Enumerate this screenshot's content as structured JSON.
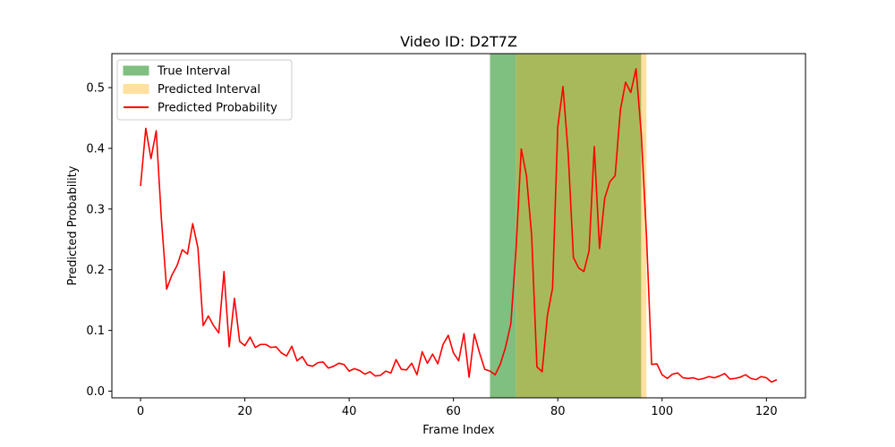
{
  "chart_data": {
    "type": "line",
    "title": "Video ID: D2T7Z",
    "xlabel": "Frame Index",
    "ylabel": "Predicted Probability",
    "xlim": [
      -5.5,
      127.5
    ],
    "ylim": [
      -0.011,
      0.556
    ],
    "xticks": [
      0,
      20,
      40,
      60,
      80,
      100,
      120
    ],
    "yticks": [
      0.0,
      0.1,
      0.2,
      0.3,
      0.4,
      0.5
    ],
    "grid": false,
    "legend_position": "top-left",
    "legend": [
      {
        "label": "True Interval",
        "kind": "patch",
        "color": "#7fbf7f"
      },
      {
        "label": "Predicted Interval",
        "kind": "patch",
        "color": "#ffe0a0"
      },
      {
        "label": "Predicted Probability",
        "kind": "line",
        "color": "#ff0000"
      }
    ],
    "intervals": {
      "true": {
        "start": 67,
        "end": 72,
        "color": "#7fbf7f"
      },
      "overlap": {
        "start": 72,
        "end": 96,
        "color": "#a8b95c"
      },
      "predicted_only": {
        "start": 96,
        "end": 97,
        "color": "#ffe0a0"
      }
    },
    "series": [
      {
        "name": "Predicted Probability",
        "color": "#ff0000",
        "x_start": 0,
        "x_step": 1,
        "values": [
          0.338,
          0.433,
          0.383,
          0.429,
          0.283,
          0.168,
          0.191,
          0.207,
          0.233,
          0.226,
          0.276,
          0.236,
          0.108,
          0.124,
          0.108,
          0.096,
          0.197,
          0.073,
          0.153,
          0.082,
          0.075,
          0.089,
          0.072,
          0.077,
          0.077,
          0.072,
          0.073,
          0.063,
          0.058,
          0.074,
          0.05,
          0.057,
          0.043,
          0.041,
          0.047,
          0.048,
          0.038,
          0.041,
          0.046,
          0.044,
          0.033,
          0.037,
          0.034,
          0.028,
          0.032,
          0.025,
          0.026,
          0.033,
          0.03,
          0.052,
          0.036,
          0.035,
          0.046,
          0.027,
          0.065,
          0.046,
          0.061,
          0.045,
          0.077,
          0.092,
          0.063,
          0.05,
          0.095,
          0.023,
          0.094,
          0.063,
          0.036,
          0.033,
          0.027,
          0.045,
          0.073,
          0.111,
          0.234,
          0.399,
          0.355,
          0.255,
          0.04,
          0.032,
          0.124,
          0.17,
          0.435,
          0.502,
          0.391,
          0.22,
          0.203,
          0.197,
          0.231,
          0.403,
          0.235,
          0.318,
          0.345,
          0.355,
          0.463,
          0.509,
          0.492,
          0.531,
          0.425,
          0.258,
          0.044,
          0.045,
          0.027,
          0.021,
          0.028,
          0.03,
          0.022,
          0.021,
          0.022,
          0.019,
          0.021,
          0.024,
          0.022,
          0.025,
          0.029,
          0.02,
          0.021,
          0.023,
          0.027,
          0.021,
          0.019,
          0.024,
          0.022,
          0.015,
          0.019
        ]
      }
    ]
  }
}
